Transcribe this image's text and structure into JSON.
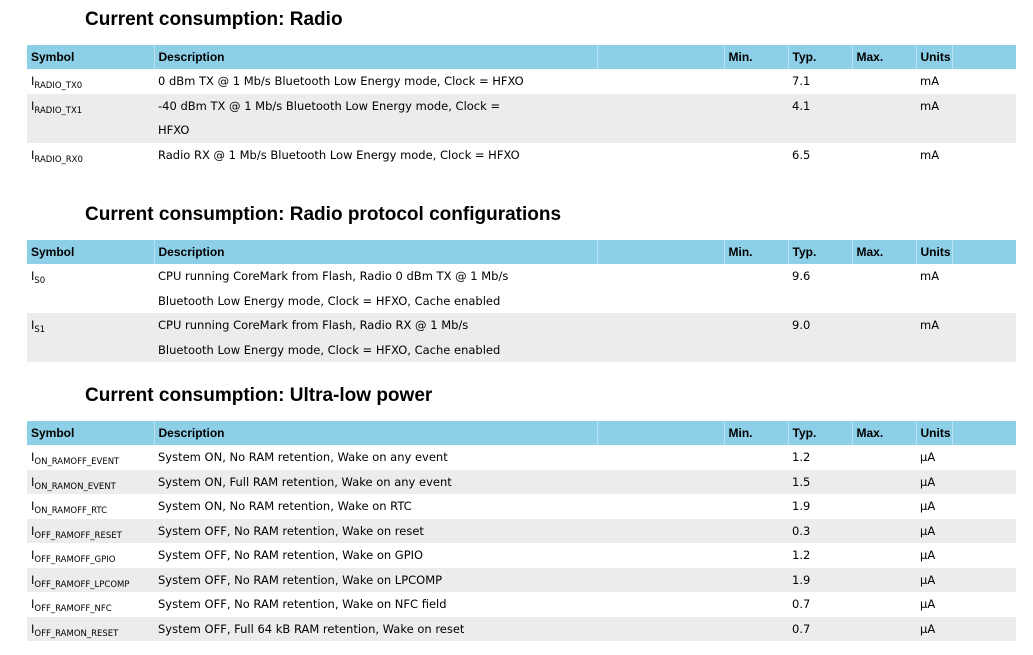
{
  "headers": {
    "symbol": "Symbol",
    "description": "Description",
    "min": "Min.",
    "typ": "Typ.",
    "max": "Max.",
    "units": "Units"
  },
  "sections": [
    {
      "title": "Current consumption: Radio",
      "rows": [
        {
          "sym_main": "I",
          "sym_sub": "RADIO_TX0",
          "desc": [
            "0 dBm TX @ 1 Mb/s Bluetooth Low Energy mode, Clock = HFXO"
          ],
          "min": "",
          "typ": "7.1",
          "max": "",
          "units": "mA"
        },
        {
          "sym_main": "I",
          "sym_sub": "RADIO_TX1",
          "desc": [
            "-40 dBm TX @ 1 Mb/s Bluetooth Low Energy mode, Clock =",
            "HFXO"
          ],
          "min": "",
          "typ": "4.1",
          "max": "",
          "units": "mA"
        },
        {
          "sym_main": "I",
          "sym_sub": "RADIO_RX0",
          "desc": [
            "Radio RX @ 1 Mb/s Bluetooth Low Energy mode, Clock = HFXO"
          ],
          "min": "",
          "typ": "6.5",
          "max": "",
          "units": "mA"
        }
      ]
    },
    {
      "title": "Current consumption: Radio protocol configurations",
      "rows": [
        {
          "sym_main": "I",
          "sym_sub": "S0",
          "desc": [
            "CPU running CoreMark from Flash, Radio 0 dBm TX @ 1 Mb/s",
            "Bluetooth Low Energy mode, Clock = HFXO, Cache enabled"
          ],
          "min": "",
          "typ": "9.6",
          "max": "",
          "units": "mA"
        },
        {
          "sym_main": "I",
          "sym_sub": "S1",
          "desc": [
            "CPU running CoreMark from Flash, Radio RX @ 1 Mb/s",
            "Bluetooth Low Energy mode, Clock = HFXO, Cache enabled"
          ],
          "min": "",
          "typ": "9.0",
          "max": "",
          "units": "mA"
        }
      ]
    },
    {
      "title": "Current consumption: Ultra-low power",
      "rows": [
        {
          "sym_main": "I",
          "sym_sub": "ON_RAMOFF_EVENT",
          "desc": [
            "System ON, No RAM retention, Wake on any event"
          ],
          "min": "",
          "typ": "1.2",
          "max": "",
          "units": "µA"
        },
        {
          "sym_main": "I",
          "sym_sub": "ON_RAMON_EVENT",
          "desc": [
            "System ON, Full RAM retention, Wake on any event"
          ],
          "min": "",
          "typ": "1.5",
          "max": "",
          "units": "µA"
        },
        {
          "sym_main": "I",
          "sym_sub": "ON_RAMOFF_RTC",
          "desc": [
            "System ON, No RAM retention, Wake on RTC"
          ],
          "min": "",
          "typ": "1.9",
          "max": "",
          "units": "µA"
        },
        {
          "sym_main": "I",
          "sym_sub": "OFF_RAMOFF_RESET",
          "desc": [
            "System OFF, No RAM retention, Wake on reset"
          ],
          "min": "",
          "typ": "0.3",
          "max": "",
          "units": "µA"
        },
        {
          "sym_main": "I",
          "sym_sub": "OFF_RAMOFF_GPIO",
          "desc": [
            "System OFF, No RAM retention, Wake on GPIO"
          ],
          "min": "",
          "typ": "1.2",
          "max": "",
          "units": "µA"
        },
        {
          "sym_main": "I",
          "sym_sub": "OFF_RAMOFF_LPCOMP",
          "desc": [
            "System OFF, No RAM retention, Wake on LPCOMP"
          ],
          "min": "",
          "typ": "1.9",
          "max": "",
          "units": "µA"
        },
        {
          "sym_main": "I",
          "sym_sub": "OFF_RAMOFF_NFC",
          "desc": [
            "System OFF, No RAM retention, Wake on NFC field"
          ],
          "min": "",
          "typ": "0.7",
          "max": "",
          "units": "µA"
        },
        {
          "sym_main": "I",
          "sym_sub": "OFF_RAMON_RESET",
          "desc": [
            "System OFF, Full 64 kB RAM retention, Wake on reset"
          ],
          "min": "",
          "typ": "0.7",
          "max": "",
          "units": "µA"
        }
      ]
    }
  ],
  "colors": {
    "header_bg": "#8ecfe8",
    "alt_row_bg": "#ececec"
  }
}
